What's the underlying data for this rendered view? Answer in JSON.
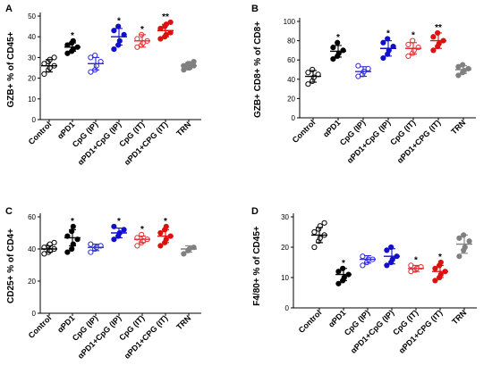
{
  "chart_data": [
    {
      "panel": "A",
      "type": "scatter",
      "ylabel": "GZB+ % of CD45+",
      "ylim": [
        0,
        50
      ],
      "yticks": [
        0,
        10,
        20,
        30,
        40,
        50
      ],
      "categories": [
        "Control",
        "αPD1",
        "CpG (IP)",
        "αPD1+CpG (IP)",
        "CpG (IT)",
        "αPD1+CPG (IT)",
        "TRN"
      ],
      "category_colors": [
        "#000000",
        "#000000",
        "#2b2bd6",
        "#1010cc",
        "#e03030",
        "#dd1111",
        "#808080"
      ],
      "marker_filled": [
        false,
        true,
        false,
        true,
        false,
        true,
        true
      ],
      "significance": [
        "",
        "*",
        "",
        "*",
        "*",
        "**",
        ""
      ],
      "points": [
        [
          22,
          24,
          25,
          26,
          27,
          28,
          29,
          30
        ],
        [
          32,
          33,
          34,
          35,
          36,
          37,
          38
        ],
        [
          23,
          24,
          26,
          28,
          30,
          31
        ],
        [
          34,
          36,
          38,
          41,
          43,
          45
        ],
        [
          35,
          36,
          37,
          38,
          39,
          41
        ],
        [
          39,
          40,
          41,
          42,
          44,
          45,
          46,
          47
        ],
        [
          24,
          25,
          25,
          26,
          26,
          27,
          27,
          28
        ]
      ],
      "mean": [
        26,
        35,
        27,
        40,
        38,
        43,
        26
      ],
      "sd": [
        3,
        2,
        3,
        4,
        3,
        3,
        1.5
      ]
    },
    {
      "panel": "B",
      "type": "scatter",
      "ylabel": "GZB+ CD8+ % of CD8+",
      "ylim": [
        0,
        100
      ],
      "yticks": [
        0,
        20,
        40,
        60,
        80,
        100
      ],
      "categories": [
        "Control",
        "αPD1",
        "CpG (IP)",
        "αPD1+CpG (IP)",
        "CpG (IT)",
        "αPD1+CPG (IT)",
        "TRN"
      ],
      "category_colors": [
        "#000000",
        "#000000",
        "#2b2bd6",
        "#1010cc",
        "#e03030",
        "#dd1111",
        "#808080"
      ],
      "marker_filled": [
        false,
        true,
        false,
        true,
        false,
        true,
        true
      ],
      "significance": [
        "",
        "*",
        "",
        "*",
        "*",
        "**",
        ""
      ],
      "points": [
        [
          35,
          38,
          42,
          45,
          47,
          50
        ],
        [
          61,
          64,
          67,
          70,
          73,
          78
        ],
        [
          43,
          45,
          48,
          51,
          54
        ],
        [
          62,
          66,
          70,
          74,
          78,
          82
        ],
        [
          64,
          67,
          70,
          73,
          76,
          80
        ],
        [
          70,
          74,
          77,
          80,
          84,
          88
        ],
        [
          44,
          47,
          49,
          51,
          53,
          55
        ]
      ],
      "mean": [
        43,
        69,
        48,
        72,
        72,
        80,
        50
      ],
      "sd": [
        6,
        6,
        5,
        8,
        6,
        8,
        4
      ]
    },
    {
      "panel": "C",
      "type": "scatter",
      "ylabel": "CD25+ % of CD4+",
      "ylim": [
        0,
        60
      ],
      "yticks": [
        0,
        20,
        40,
        60
      ],
      "categories": [
        "Control",
        "αPD1",
        "CpG (IP)",
        "αPD1+CpG (IP)",
        "CpG (IT)",
        "αPD1+CPG (IT)",
        "TRN"
      ],
      "category_colors": [
        "#000000",
        "#000000",
        "#2b2bd6",
        "#1010cc",
        "#e03030",
        "#dd1111",
        "#808080"
      ],
      "marker_filled": [
        false,
        true,
        false,
        true,
        false,
        true,
        true
      ],
      "significance": [
        "",
        "*",
        "",
        "*",
        "*",
        "*",
        ""
      ],
      "points": [
        [
          37,
          38,
          39,
          40,
          41,
          42,
          43,
          44
        ],
        [
          38,
          40,
          43,
          46,
          48,
          51,
          54
        ],
        [
          38,
          40,
          41,
          42,
          43
        ],
        [
          46,
          48,
          50,
          52,
          54
        ],
        [
          42,
          44,
          45,
          46,
          47,
          49
        ],
        [
          42,
          44,
          46,
          48,
          50,
          52,
          54
        ],
        [
          37,
          39,
          40,
          41
        ]
      ],
      "mean": [
        40,
        47,
        41,
        50,
        46,
        48,
        40
      ],
      "sd": [
        2,
        5,
        2,
        3,
        2,
        4,
        2
      ]
    },
    {
      "panel": "D",
      "type": "scatter",
      "ylabel": "F4/80+ % of CD45+",
      "ylim": [
        0,
        30
      ],
      "yticks": [
        0,
        10,
        20,
        30
      ],
      "categories": [
        "Control",
        "αPD1",
        "CpG (IP)",
        "αPD1+CpG (IP)",
        "CpG (IT)",
        "αPD1+CPG (IT)",
        "TRN"
      ],
      "category_colors": [
        "#000000",
        "#000000",
        "#2b2bd6",
        "#1010cc",
        "#e03030",
        "#dd1111",
        "#808080"
      ],
      "marker_filled": [
        false,
        true,
        false,
        true,
        false,
        true,
        true
      ],
      "significance": [
        "",
        "*",
        "",
        "",
        "*",
        "*",
        ""
      ],
      "points": [
        [
          20,
          22,
          23,
          24,
          25,
          26,
          27,
          28
        ],
        [
          8,
          9,
          10,
          11,
          12,
          13
        ],
        [
          14,
          15,
          16,
          16,
          17
        ],
        [
          14,
          15,
          16,
          17,
          19,
          20
        ],
        [
          12,
          12.5,
          13,
          13.5,
          14
        ],
        [
          9,
          10,
          11,
          12,
          13,
          14,
          15
        ],
        [
          17,
          19,
          20,
          22,
          23,
          24
        ]
      ],
      "mean": [
        24,
        11,
        16,
        17,
        13,
        12,
        21
      ],
      "sd": [
        2.5,
        2,
        1.2,
        2.5,
        1,
        2,
        3
      ]
    }
  ]
}
